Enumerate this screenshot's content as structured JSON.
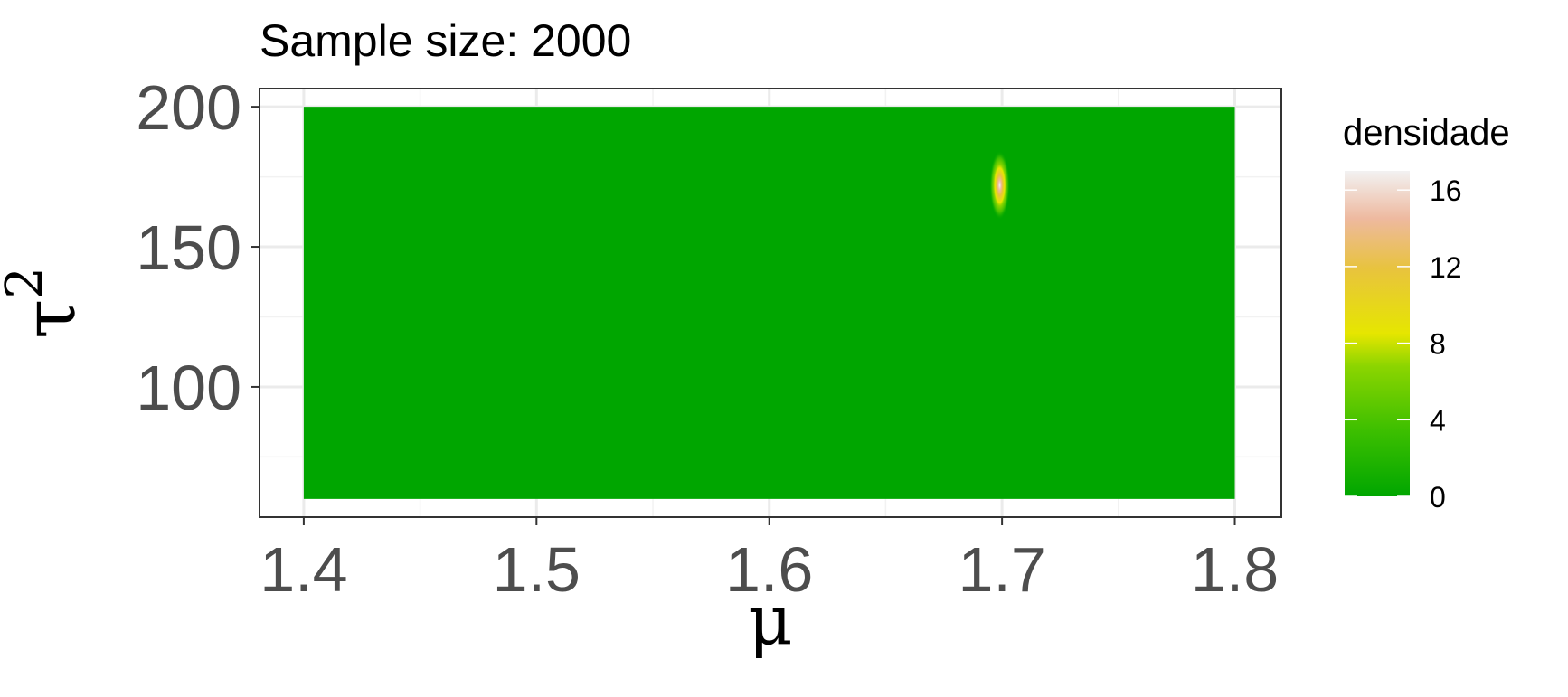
{
  "chart_data": {
    "type": "heatmap",
    "title": "Sample size: 2000",
    "xlabel": "μ",
    "ylabel_base": "τ",
    "ylabel_sup": "2",
    "xlim": [
      1.381,
      1.82
    ],
    "ylim": [
      53.5,
      206.5
    ],
    "xticks": [
      1.4,
      1.5,
      1.6,
      1.7,
      1.8
    ],
    "xtick_labels": [
      "1.4",
      "1.5",
      "1.6",
      "1.7",
      "1.8"
    ],
    "yticks": [
      100,
      150,
      200
    ],
    "ytick_labels": [
      "100",
      "150",
      "200"
    ],
    "x_minor": [
      1.45,
      1.55,
      1.65,
      1.75
    ],
    "y_minor": [
      75,
      125,
      175
    ],
    "tile_extent": {
      "x": [
        1.4,
        1.8
      ],
      "y": [
        60,
        200
      ]
    },
    "peak": {
      "x": 1.699,
      "y": 172,
      "value": 17
    },
    "grid": true,
    "legend": {
      "title": "densidade",
      "placement": "right",
      "limits": [
        0,
        17
      ],
      "breaks": [
        0,
        4,
        8,
        12,
        16
      ],
      "break_labels": [
        "0",
        "4",
        "8",
        "12",
        "16"
      ],
      "colors": [
        {
          "value": 0,
          "color": "#00a600"
        },
        {
          "value": 3.4,
          "color": "#3cbf00"
        },
        {
          "value": 6.8,
          "color": "#8cd500"
        },
        {
          "value": 8.5,
          "color": "#e6e600"
        },
        {
          "value": 11.9,
          "color": "#e8c33e"
        },
        {
          "value": 14.5,
          "color": "#eeb99f"
        },
        {
          "value": 17,
          "color": "#f2f2f2"
        }
      ]
    }
  }
}
